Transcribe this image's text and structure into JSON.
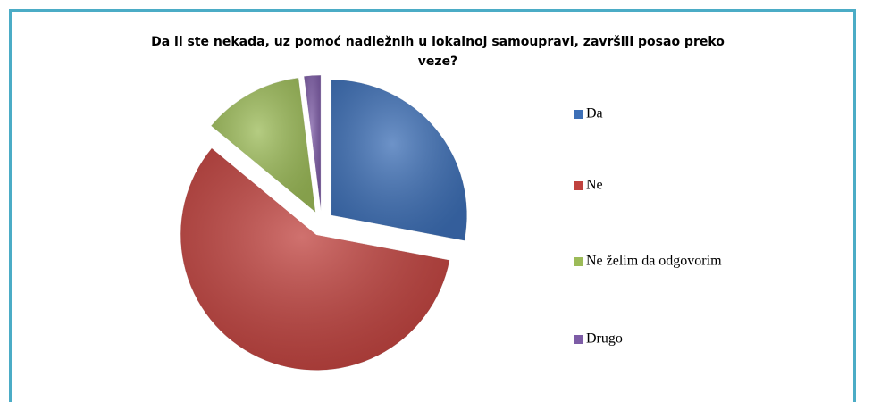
{
  "chart_data": {
    "type": "pie",
    "title": "Da li ste nekada, uz pomoć nadležnih u lokalnoj samoupravi, završili posao preko veze?",
    "categories": [
      "Da",
      "Ne",
      "Ne želim da odgovorim",
      "Drugo"
    ],
    "values": [
      28,
      58,
      12,
      2
    ],
    "colors": [
      "#3d6fb6",
      "#c0423e",
      "#9cbb58",
      "#7d5ca6"
    ],
    "legend": "right"
  }
}
